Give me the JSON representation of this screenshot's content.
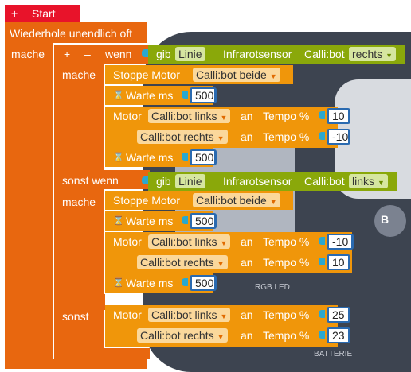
{
  "start": {
    "label": "Start",
    "plus": "+"
  },
  "loop": {
    "label": "Wiederhole unendlich oft",
    "do_label": "mache"
  },
  "ifblock": {
    "plus": "+",
    "minus": "–",
    "if_label": "wenn",
    "do1": "mache",
    "elseif_label": "sonst wenn",
    "do2": "mache",
    "else_label": "sonst"
  },
  "cond1": {
    "gib": "gib",
    "linie": "Linie",
    "sensor": "Infrarotsensor",
    "callibot": "Calli:bot",
    "side": "rechts"
  },
  "cond2": {
    "gib": "gib",
    "linie": "Linie",
    "sensor": "Infrarotsensor",
    "callibot": "Calli:bot",
    "side": "links"
  },
  "blocks": {
    "stop1": {
      "label": "Stoppe  Motor",
      "target": "Calli:bot beide"
    },
    "wait1": {
      "label": "Warte ms",
      "value": "500"
    },
    "motor1a": {
      "label": "Motor",
      "target": "Calli:bot links",
      "an": "an",
      "tempo": "Tempo %",
      "value": "10"
    },
    "motor1b": {
      "target": "Calli:bot rechts",
      "an": "an",
      "tempo": "Tempo %",
      "value": "-10"
    },
    "wait2": {
      "label": "Warte ms",
      "value": "500"
    },
    "stop2": {
      "label": "Stoppe  Motor",
      "target": "Calli:bot beide"
    },
    "wait3": {
      "label": "Warte ms",
      "value": "500"
    },
    "motor2a": {
      "label": "Motor",
      "target": "Calli:bot links",
      "an": "an",
      "tempo": "Tempo %",
      "value": "-10"
    },
    "motor2b": {
      "target": "Calli:bot rechts",
      "an": "an",
      "tempo": "Tempo %",
      "value": "10"
    },
    "wait4": {
      "label": "Warte ms",
      "value": "500"
    },
    "motor3a": {
      "label": "Motor",
      "target": "Calli:bot links",
      "an": "an",
      "tempo": "Tempo %",
      "value": "25"
    },
    "motor3b": {
      "target": "Calli:bot rechts",
      "an": "an",
      "tempo": "Tempo %",
      "value": "23"
    }
  },
  "board_labels": {
    "b": "B",
    "rgb": "RGB LED",
    "batterie": "BATTERIE"
  },
  "colors": {
    "loop": "#e8670f",
    "motor": "#f0960a",
    "logic_green": "#8aa80a",
    "number": "#2a6ab0",
    "start": "#e8132a"
  }
}
